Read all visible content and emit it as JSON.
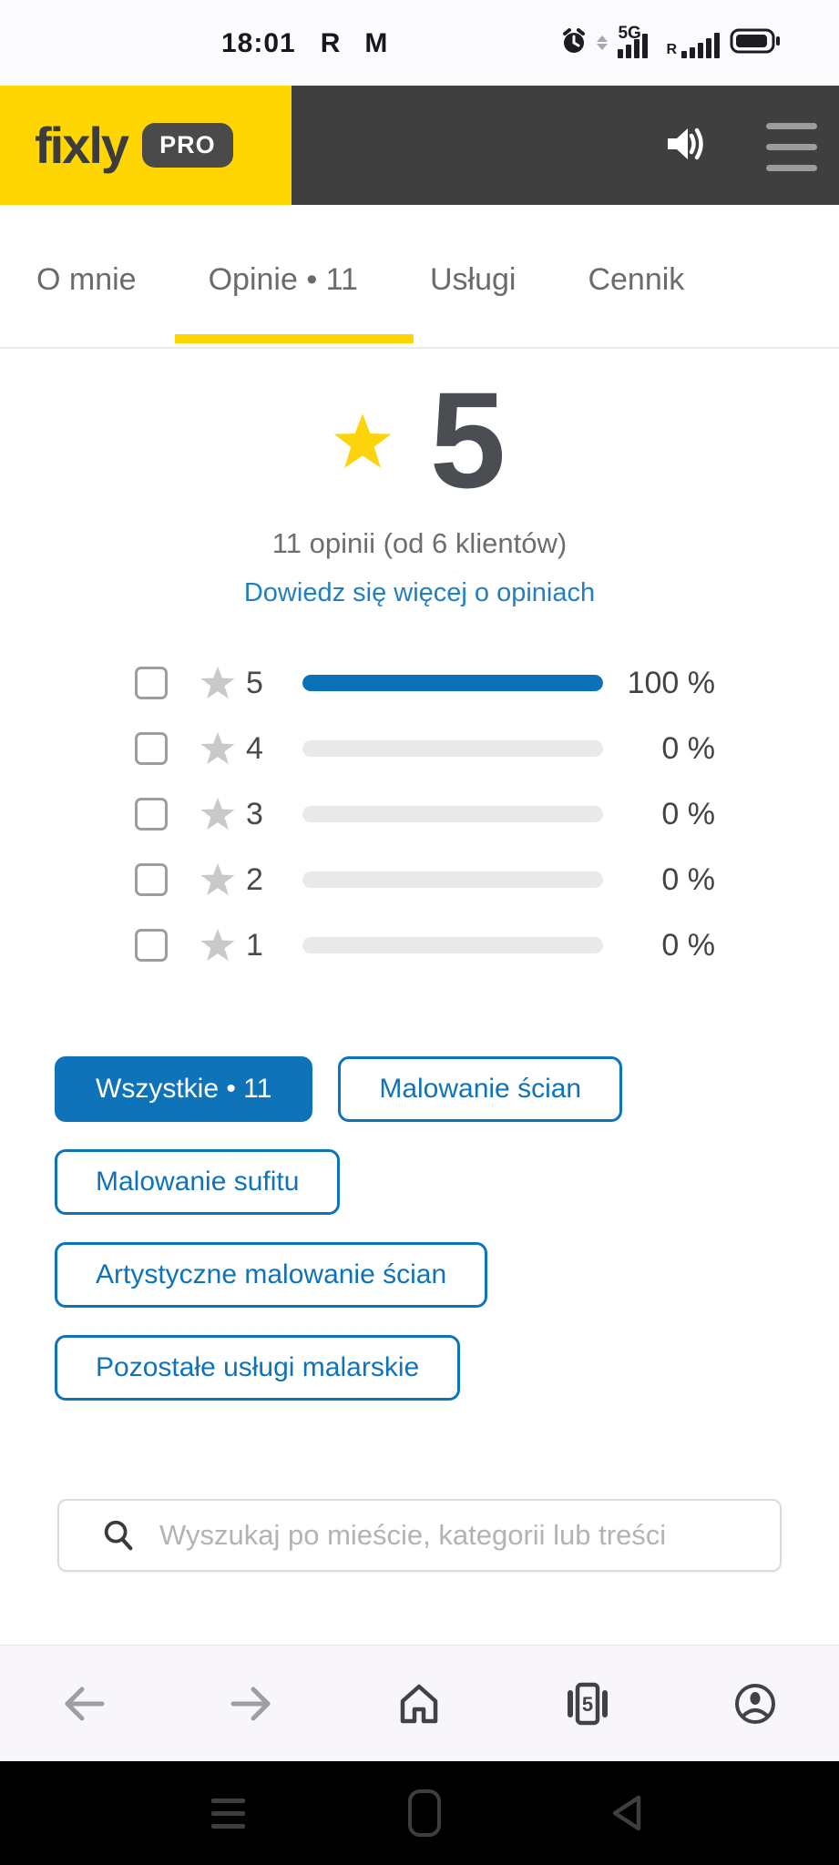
{
  "status_bar": {
    "time": "18:01",
    "carrier_letter": "R",
    "mail_letter": "M",
    "network_label": "5G",
    "roaming_letter": "R"
  },
  "header": {
    "logo_text": "fixly",
    "badge_text": "PRO"
  },
  "tabs": {
    "items": [
      {
        "label": "O mnie",
        "active": false
      },
      {
        "label": "Opinie • 11",
        "active": true
      },
      {
        "label": "Usługi",
        "active": false
      },
      {
        "label": "Cennik",
        "active": false
      }
    ]
  },
  "rating_summary": {
    "score": "5",
    "count_text": "11 opinii (od 6 klientów)",
    "link_text": "Dowiedz się więcej o opiniach"
  },
  "rating_breakdown": {
    "rows": [
      {
        "stars": "5",
        "percent_label": "100 %",
        "percent_value": 100
      },
      {
        "stars": "4",
        "percent_label": "0 %",
        "percent_value": 0
      },
      {
        "stars": "3",
        "percent_label": "0 %",
        "percent_value": 0
      },
      {
        "stars": "2",
        "percent_label": "0 %",
        "percent_value": 0
      },
      {
        "stars": "1",
        "percent_label": "0 %",
        "percent_value": 0
      }
    ]
  },
  "filters": [
    {
      "label": "Wszystkie • 11",
      "active": true
    },
    {
      "label": "Malowanie ścian",
      "active": false
    },
    {
      "label": "Malowanie sufitu",
      "active": false
    },
    {
      "label": "Artystyczne malowanie ścian",
      "active": false
    },
    {
      "label": "Pozostałe usługi malarskie",
      "active": false
    }
  ],
  "search": {
    "placeholder": "Wyszukaj po mieście, kategorii lub treści"
  },
  "browser_nav": {
    "tab_count": "5"
  },
  "colors": {
    "accent_yellow": "#ffd502",
    "header_dark": "#3f3f3f",
    "bar_blue": "#0a70b8",
    "chip_blue": "#0e73b9",
    "link_blue": "#2280c2",
    "star_yellow": "#fcd40b",
    "star_gray": "#c9c9c9"
  }
}
